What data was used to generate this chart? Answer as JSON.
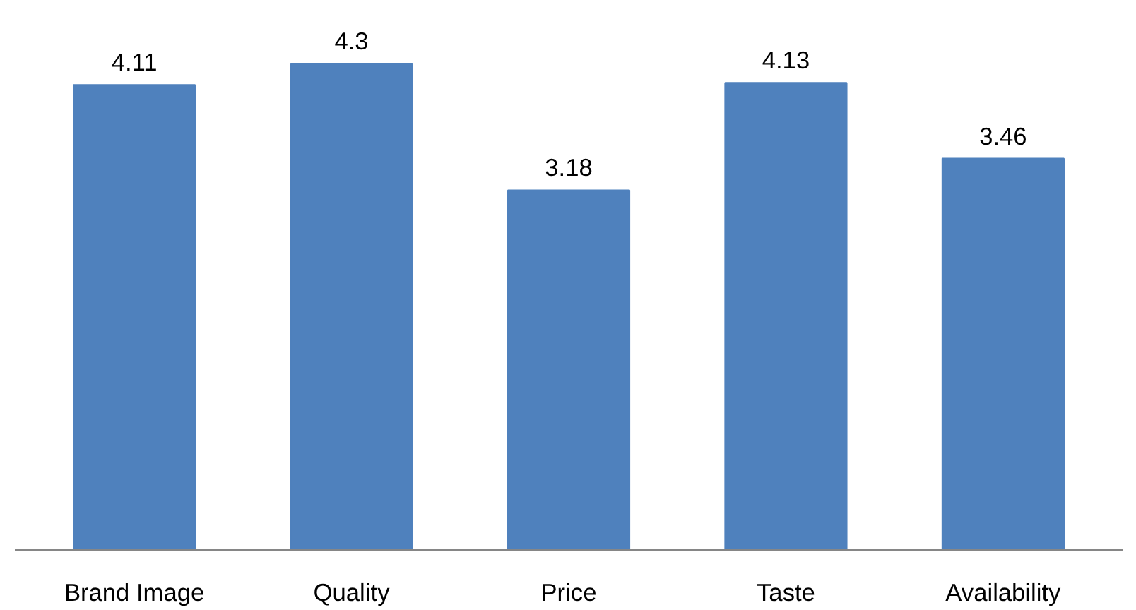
{
  "chart_data": {
    "type": "bar",
    "categories": [
      "Brand Image",
      "Quality",
      "Price",
      "Taste",
      "Availability"
    ],
    "values": [
      4.11,
      4.3,
      3.18,
      4.13,
      3.46
    ],
    "color": "#4f81bd",
    "data_labels": true,
    "tick_labels": "x"
  }
}
